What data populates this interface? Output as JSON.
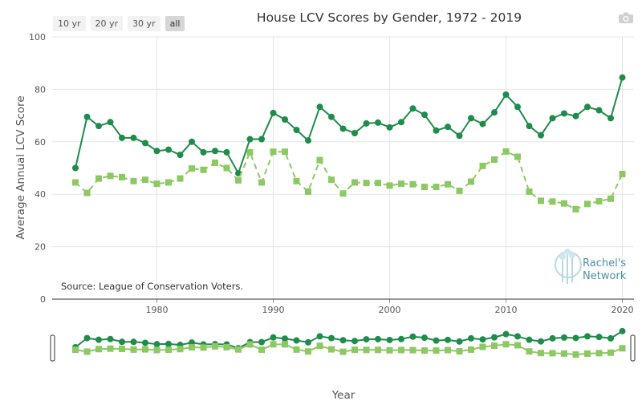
{
  "title": "House LCV Scores by Gender, 1972 - 2019",
  "range_buttons": [
    "10 yr",
    "20 yr",
    "30 yr",
    "all"
  ],
  "active_range": "all",
  "source_note": "Source: League of Conservation Voters.",
  "logo": {
    "line1": "Rachel's",
    "line2": "Network"
  },
  "colors": {
    "dark_green": "#1e8c4a",
    "light_green": "#8dc963",
    "grid": "#e6e6e6"
  },
  "chart_data": {
    "type": "line",
    "title": "House LCV Scores by Gender, 1972 - 2019",
    "xlabel": "Year",
    "ylabel": "Average Annual LCV Score",
    "ylim": [
      0,
      100
    ],
    "xlim": [
      1971,
      2021
    ],
    "yticks": [
      0,
      20,
      40,
      60,
      80,
      100
    ],
    "xticks": [
      1980,
      1990,
      2000,
      2010,
      2020
    ],
    "grid": true,
    "legend": "none",
    "x": [
      1973,
      1974,
      1975,
      1976,
      1977,
      1978,
      1979,
      1980,
      1981,
      1982,
      1983,
      1984,
      1985,
      1986,
      1987,
      1988,
      1989,
      1990,
      1991,
      1992,
      1993,
      1994,
      1995,
      1996,
      1997,
      1998,
      1999,
      2000,
      2001,
      2002,
      2003,
      2004,
      2005,
      2006,
      2007,
      2008,
      2009,
      2010,
      2011,
      2012,
      2013,
      2014,
      2015,
      2016,
      2017,
      2018,
      2019,
      2020
    ],
    "series": [
      {
        "values": [
          50,
          69.5,
          66,
          67.5,
          61.5,
          61.5,
          59.5,
          56.5,
          57,
          55,
          60,
          56,
          56.5,
          56,
          48,
          61,
          61,
          71,
          68.5,
          64.5,
          60.5,
          73.3,
          69.5,
          65,
          63.3,
          67,
          67.3,
          65.5,
          67.5,
          72.7,
          70.3,
          64.3,
          65.7,
          62.3,
          69,
          66.8,
          71.2,
          78,
          73.3,
          66,
          62.5,
          69,
          70.8,
          69.8,
          73.3,
          72,
          69,
          84.5
        ],
        "color": "#1e8c4a",
        "marker": "circle",
        "line": "solid"
      },
      {
        "values": [
          44.5,
          40.5,
          46,
          47,
          46.5,
          45,
          45.5,
          44,
          44.5,
          46,
          49.8,
          49.3,
          52,
          50,
          45.3,
          56,
          44.5,
          56.2,
          56.2,
          45,
          41,
          53,
          45.5,
          40.3,
          44.5,
          44.3,
          44.3,
          43.3,
          44,
          43.8,
          42.8,
          42.8,
          43.8,
          41.3,
          44.8,
          50.8,
          53.2,
          56.3,
          54.3,
          41,
          37.5,
          37.2,
          36.5,
          34.3,
          36.3,
          37.3,
          38.3,
          47.7
        ],
        "color": "#8dc963",
        "marker": "square",
        "line": "dashed"
      }
    ]
  }
}
